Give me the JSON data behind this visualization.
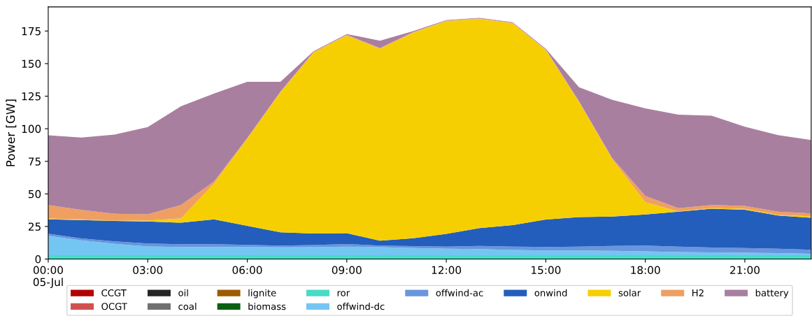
{
  "chart_data": {
    "type": "area",
    "stacked": true,
    "ylabel": "Power [GW]",
    "x": [
      0,
      1,
      2,
      3,
      4,
      5,
      6,
      7,
      8,
      9,
      10,
      11,
      12,
      13,
      14,
      15,
      16,
      17,
      18,
      19,
      20,
      21,
      22,
      23
    ],
    "xlim": [
      0,
      23
    ],
    "xticks": [
      {
        "value": 0,
        "label": "00:00\n05-Jul"
      },
      {
        "value": 3,
        "label": "03:00"
      },
      {
        "value": 6,
        "label": "06:00"
      },
      {
        "value": 9,
        "label": "09:00"
      },
      {
        "value": 12,
        "label": "12:00"
      },
      {
        "value": 15,
        "label": "15:00"
      },
      {
        "value": 18,
        "label": "18:00"
      },
      {
        "value": 21,
        "label": "21:00"
      }
    ],
    "ylim": [
      0,
      193.5
    ],
    "yticks": [
      0,
      25,
      50,
      75,
      100,
      125,
      150,
      175
    ],
    "grid": false,
    "legend": "bottom",
    "series": [
      {
        "name": "CCGT",
        "color": "#b20101",
        "values": [
          null,
          null,
          null,
          null,
          null,
          null,
          null,
          null,
          null,
          null,
          null,
          null,
          null,
          null,
          null,
          null,
          null,
          null,
          null,
          null,
          null,
          null,
          null,
          null
        ]
      },
      {
        "name": "OCGT",
        "color": "#d35050",
        "values": [
          null,
          null,
          null,
          null,
          null,
          null,
          null,
          null,
          null,
          null,
          null,
          null,
          null,
          null,
          null,
          null,
          null,
          null,
          null,
          null,
          null,
          null,
          null,
          null
        ]
      },
      {
        "name": "oil",
        "color": "#262626",
        "values": [
          null,
          null,
          null,
          null,
          null,
          null,
          null,
          null,
          null,
          null,
          null,
          null,
          null,
          null,
          null,
          null,
          null,
          null,
          null,
          null,
          null,
          null,
          null,
          null
        ]
      },
      {
        "name": "coal",
        "color": "#707070",
        "values": [
          null,
          null,
          null,
          null,
          null,
          null,
          null,
          null,
          null,
          null,
          null,
          null,
          null,
          null,
          null,
          null,
          null,
          null,
          null,
          null,
          null,
          null,
          null,
          null
        ]
      },
      {
        "name": "lignite",
        "color": "#9e5a01",
        "values": [
          null,
          null,
          null,
          null,
          null,
          null,
          null,
          null,
          null,
          null,
          null,
          null,
          null,
          null,
          null,
          null,
          null,
          null,
          null,
          null,
          null,
          null,
          null,
          null
        ]
      },
      {
        "name": "biomass",
        "color": "#0c6013",
        "values": [
          null,
          null,
          null,
          null,
          null,
          null,
          null,
          null,
          null,
          null,
          null,
          null,
          null,
          null,
          null,
          null,
          null,
          null,
          null,
          null,
          null,
          null,
          null,
          null
        ]
      },
      {
        "name": "ror",
        "color": "#48dbc6",
        "values": [
          3,
          3,
          3,
          3,
          3,
          3,
          3,
          3,
          3,
          3,
          3,
          3,
          3,
          3,
          3,
          3,
          3,
          3,
          3,
          3,
          3,
          3,
          3,
          3
        ]
      },
      {
        "name": "offwind-dc",
        "color": "#74c6f2",
        "values": [
          14.9,
          11.4,
          8.7,
          6.7,
          6.3,
          6.3,
          6.3,
          6.0,
          6.1,
          6.6,
          6.1,
          5.4,
          4.9,
          4.6,
          4.0,
          3.6,
          3.6,
          3.3,
          2.9,
          2.4,
          2.1,
          1.9,
          1.6,
          1.1
        ]
      },
      {
        "name": "offwind-ac",
        "color": "#6895dd",
        "values": [
          1.6,
          1.5,
          1.9,
          2.3,
          2.1,
          2.1,
          1.6,
          1.4,
          1.6,
          1.9,
          1.3,
          1.5,
          1.7,
          2.5,
          2.6,
          2.7,
          3.0,
          3.8,
          4.5,
          4.2,
          3.7,
          3.5,
          3.3,
          3.0
        ]
      },
      {
        "name": "onwind",
        "color": "#235ebc",
        "values": [
          10.9,
          14.0,
          15.6,
          16.9,
          16.5,
          19.0,
          14.6,
          10.2,
          8.9,
          8.3,
          3.7,
          6.1,
          9.7,
          13.6,
          16.5,
          21.0,
          22.6,
          22.5,
          23.8,
          26.7,
          29.9,
          29.5,
          25.5,
          24.6
        ]
      },
      {
        "name": "solar",
        "color": "#f6cf02",
        "values": [
          0.8,
          0.6,
          0.3,
          0.6,
          3.3,
          27.6,
          66.9,
          107.4,
          138.9,
          151.8,
          147.3,
          157.7,
          163.3,
          160.6,
          154.9,
          130.0,
          88.4,
          44.2,
          9.4,
          0.3,
          0.5,
          0.8,
          0.5,
          1.0
        ]
      },
      {
        "name": "H2",
        "color": "#ef9f62",
        "values": [
          10.2,
          7.2,
          5.2,
          4.9,
          10.2,
          1.6,
          0.5,
          0.5,
          0.5,
          0.5,
          0.5,
          0.5,
          0.4,
          0.4,
          0.4,
          0.5,
          0.5,
          0.8,
          4.9,
          2.4,
          2.3,
          2.1,
          2.4,
          2.3
        ]
      },
      {
        "name": "battery",
        "color": "#a97f9f",
        "values": [
          53.6,
          55.6,
          60.8,
          66.9,
          75.8,
          67.4,
          43.2,
          7.6,
          0.5,
          0.6,
          5.7,
          0.7,
          0.4,
          0.4,
          0.4,
          0.6,
          10.8,
          44.6,
          67.2,
          71.8,
          68.5,
          60.8,
          58.8,
          56.4
        ]
      }
    ]
  }
}
